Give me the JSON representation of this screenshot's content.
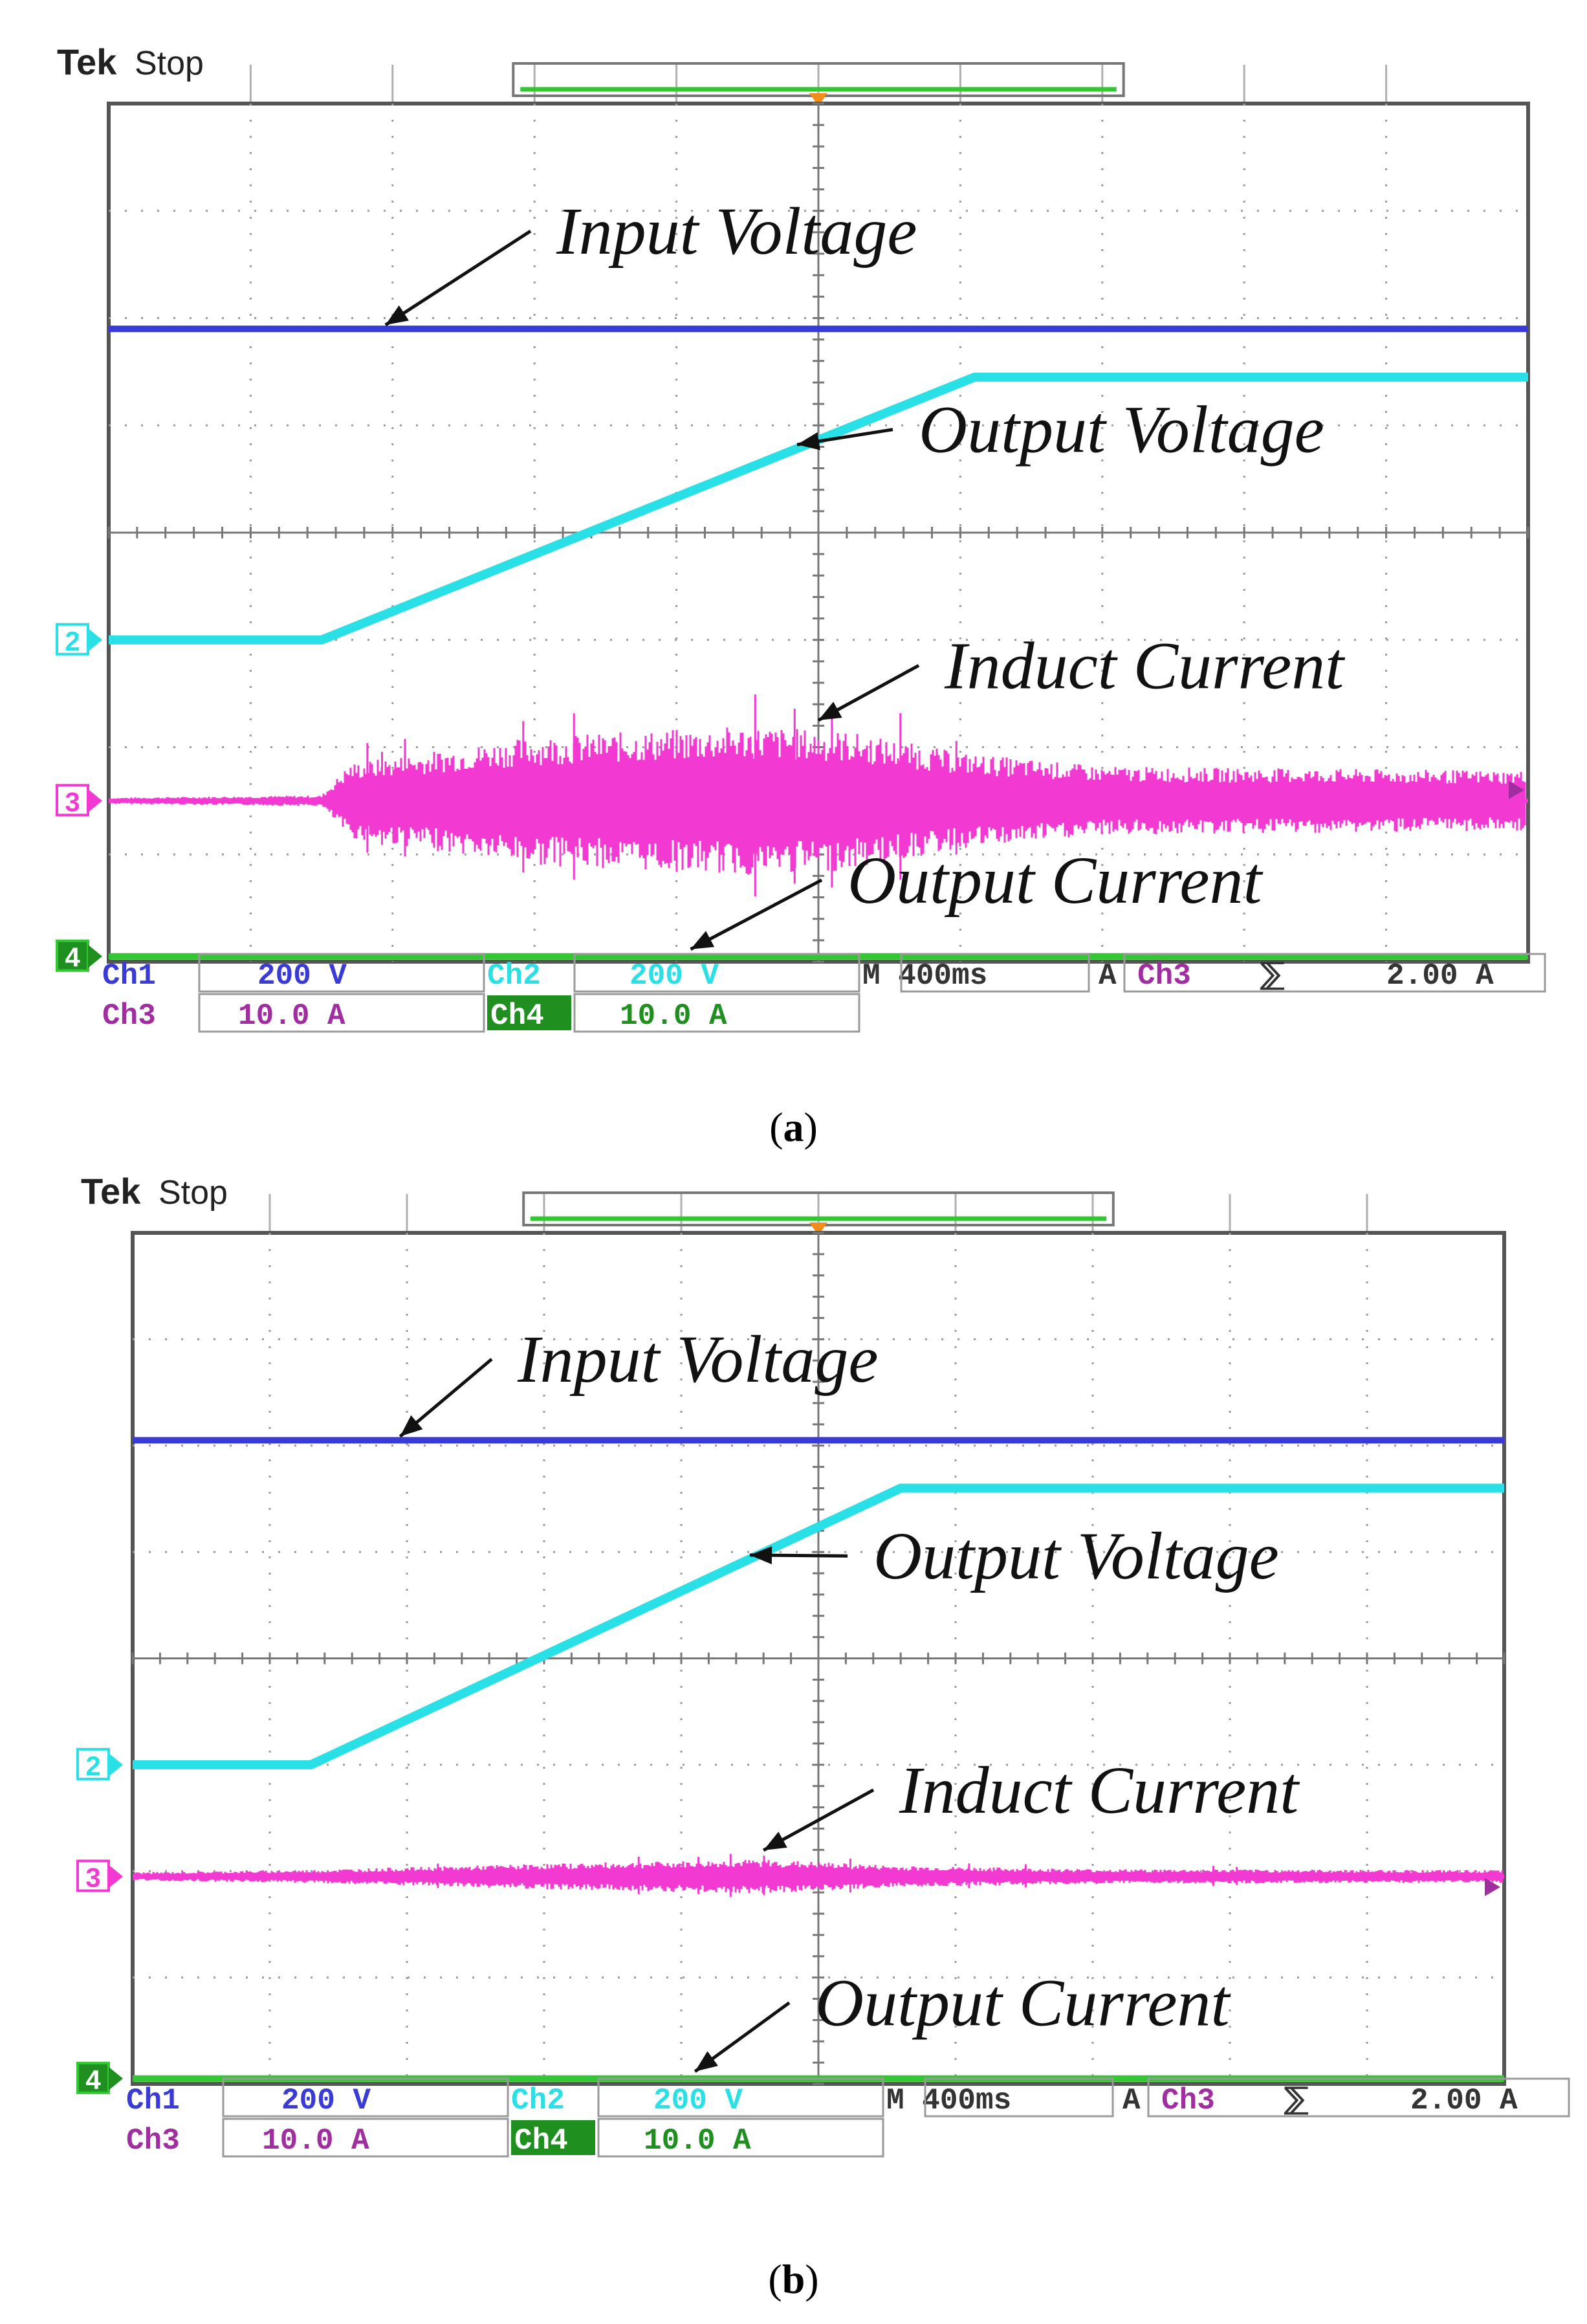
{
  "colors": {
    "ch1": "#3a3ad6",
    "ch2": "#29e0e6",
    "ch3": "#f23ad2",
    "ch4": "#33c733",
    "grid": "#9a9a9a",
    "frame": "#555555",
    "ch3_label": "#a02ea0",
    "ch4_badge_bg": "#1f8f1f",
    "trigger": "#f28c1a"
  },
  "panels": [
    {
      "id": "a",
      "caption_open": "(",
      "caption_letter": "a",
      "caption_close": ")",
      "header": {
        "brand": "Tek",
        "state": "Stop"
      },
      "settings": {
        "ch1_label": "Ch1",
        "ch1_scale": "200 V",
        "ch2_label": "Ch2",
        "ch2_scale": "200 V",
        "ch3_label": "Ch3",
        "ch3_scale": "10.0 A",
        "ch4_label": "Ch4",
        "ch4_scale": "10.0 A",
        "timebase": "M 400ms",
        "trigger_mode": "A",
        "trigger_source": "Ch3",
        "trigger_slope": "⅀",
        "trigger_level": "2.00 A"
      },
      "channel_markers": [
        "2",
        "3",
        "4"
      ],
      "chart_data": {
        "type": "line",
        "x_unit": "s",
        "time_per_div_s": 0.4,
        "divisions_x": 10,
        "divisions_y": 8,
        "series": [
          {
            "name": "Input Voltage",
            "channel": 1,
            "points": [
              [
                0,
                5.9
              ],
              [
                10,
                5.9
              ]
            ]
          },
          {
            "name": "Output Voltage",
            "channel": 2,
            "points": [
              [
                0,
                3.0
              ],
              [
                1.5,
                3.0
              ],
              [
                6.1,
                5.45
              ],
              [
                10,
                5.45
              ]
            ]
          },
          {
            "name": "Induct Current",
            "channel": 3,
            "baseline_div": 1.5,
            "envelope_div": [
              [
                0,
                0.03
              ],
              [
                1.5,
                0.05
              ],
              [
                1.7,
                0.35
              ],
              [
                3.0,
                0.6
              ],
              [
                4.5,
                0.7
              ],
              [
                5.2,
                0.65
              ],
              [
                6.0,
                0.45
              ],
              [
                7.0,
                0.32
              ],
              [
                8.5,
                0.3
              ],
              [
                10,
                0.28
              ]
            ]
          },
          {
            "name": "Output Current",
            "channel": 4,
            "points": [
              [
                0,
                0.05
              ],
              [
                10,
                0.05
              ]
            ]
          }
        ],
        "annotations": [
          "Input Voltage",
          "Output Voltage",
          "Induct Current",
          "Output Current"
        ]
      }
    },
    {
      "id": "b",
      "caption_open": "(",
      "caption_letter": "b",
      "caption_close": ")",
      "header": {
        "brand": "Tek",
        "state": "Stop"
      },
      "settings": {
        "ch1_label": "Ch1",
        "ch1_scale": "200 V",
        "ch2_label": "Ch2",
        "ch2_scale": "200 V",
        "ch3_label": "Ch3",
        "ch3_scale": "10.0 A",
        "ch4_label": "Ch4",
        "ch4_scale": "10.0 A",
        "timebase": "M 400ms",
        "trigger_mode": "A",
        "trigger_source": "Ch3",
        "trigger_slope": "⅀",
        "trigger_level": "2.00 A"
      },
      "channel_markers": [
        "2",
        "3",
        "4"
      ],
      "chart_data": {
        "type": "line",
        "x_unit": "s",
        "time_per_div_s": 0.4,
        "divisions_x": 10,
        "divisions_y": 8,
        "series": [
          {
            "name": "Input Voltage",
            "channel": 1,
            "points": [
              [
                0,
                6.05
              ],
              [
                10,
                6.05
              ]
            ]
          },
          {
            "name": "Output Voltage",
            "channel": 2,
            "points": [
              [
                0,
                3.0
              ],
              [
                1.3,
                3.0
              ],
              [
                5.6,
                5.6
              ],
              [
                10,
                5.6
              ]
            ]
          },
          {
            "name": "Induct Current",
            "channel": 3,
            "baseline_div": 1.95,
            "envelope_div": [
              [
                0,
                0.04
              ],
              [
                1.2,
                0.06
              ],
              [
                3.0,
                0.12
              ],
              [
                4.6,
                0.16
              ],
              [
                5.6,
                0.1
              ],
              [
                7.0,
                0.07
              ],
              [
                10,
                0.06
              ]
            ]
          },
          {
            "name": "Output Current",
            "channel": 4,
            "points": [
              [
                0,
                0.05
              ],
              [
                10,
                0.05
              ]
            ]
          }
        ],
        "annotations": [
          "Input Voltage",
          "Output Voltage",
          "Induct Current",
          "Output Current"
        ]
      }
    }
  ]
}
